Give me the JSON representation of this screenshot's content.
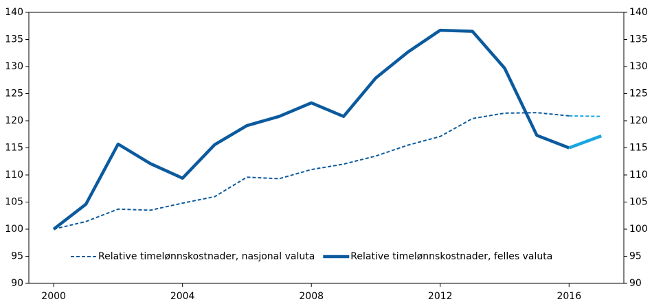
{
  "chart_data": {
    "type": "line",
    "x": [
      2000,
      2001,
      2002,
      2003,
      2004,
      2005,
      2006,
      2007,
      2008,
      2009,
      2010,
      2011,
      2012,
      2013,
      2014,
      2015,
      2016,
      2017
    ],
    "xlim": [
      1999.23,
      2017.7
    ],
    "xticks": [
      2000,
      2004,
      2008,
      2012,
      2016
    ],
    "ylim": [
      90,
      140
    ],
    "yticks": [
      90,
      95,
      100,
      105,
      110,
      115,
      120,
      125,
      130,
      135,
      140
    ],
    "y2lim": [
      90,
      140
    ],
    "y2ticks": [
      90,
      95,
      100,
      105,
      110,
      115,
      120,
      125,
      130,
      135,
      140
    ],
    "projection_from": 2016,
    "legend": "bottom",
    "series": [
      {
        "name": "Relative timelønnskostnader, nasjonal valuta",
        "color": "#0b5a9e",
        "projection_color": "#1aa6e0",
        "dash": true,
        "values": [
          100,
          101.4,
          103.7,
          103.5,
          104.8,
          106.0,
          109.6,
          109.3,
          111.0,
          112.0,
          113.5,
          115.5,
          117.1,
          120.4,
          121.4,
          121.5,
          120.9,
          120.8
        ]
      },
      {
        "name": "Relative timelønnskostnader, felles valuta",
        "color": "#0b5a9e",
        "projection_color": "#1aa6e0",
        "dash": false,
        "values": [
          100,
          104.6,
          115.7,
          112.1,
          109.4,
          115.6,
          119.1,
          120.8,
          123.3,
          120.8,
          127.9,
          132.7,
          136.7,
          136.5,
          129.7,
          117.3,
          115.0,
          117.2
        ]
      }
    ]
  }
}
